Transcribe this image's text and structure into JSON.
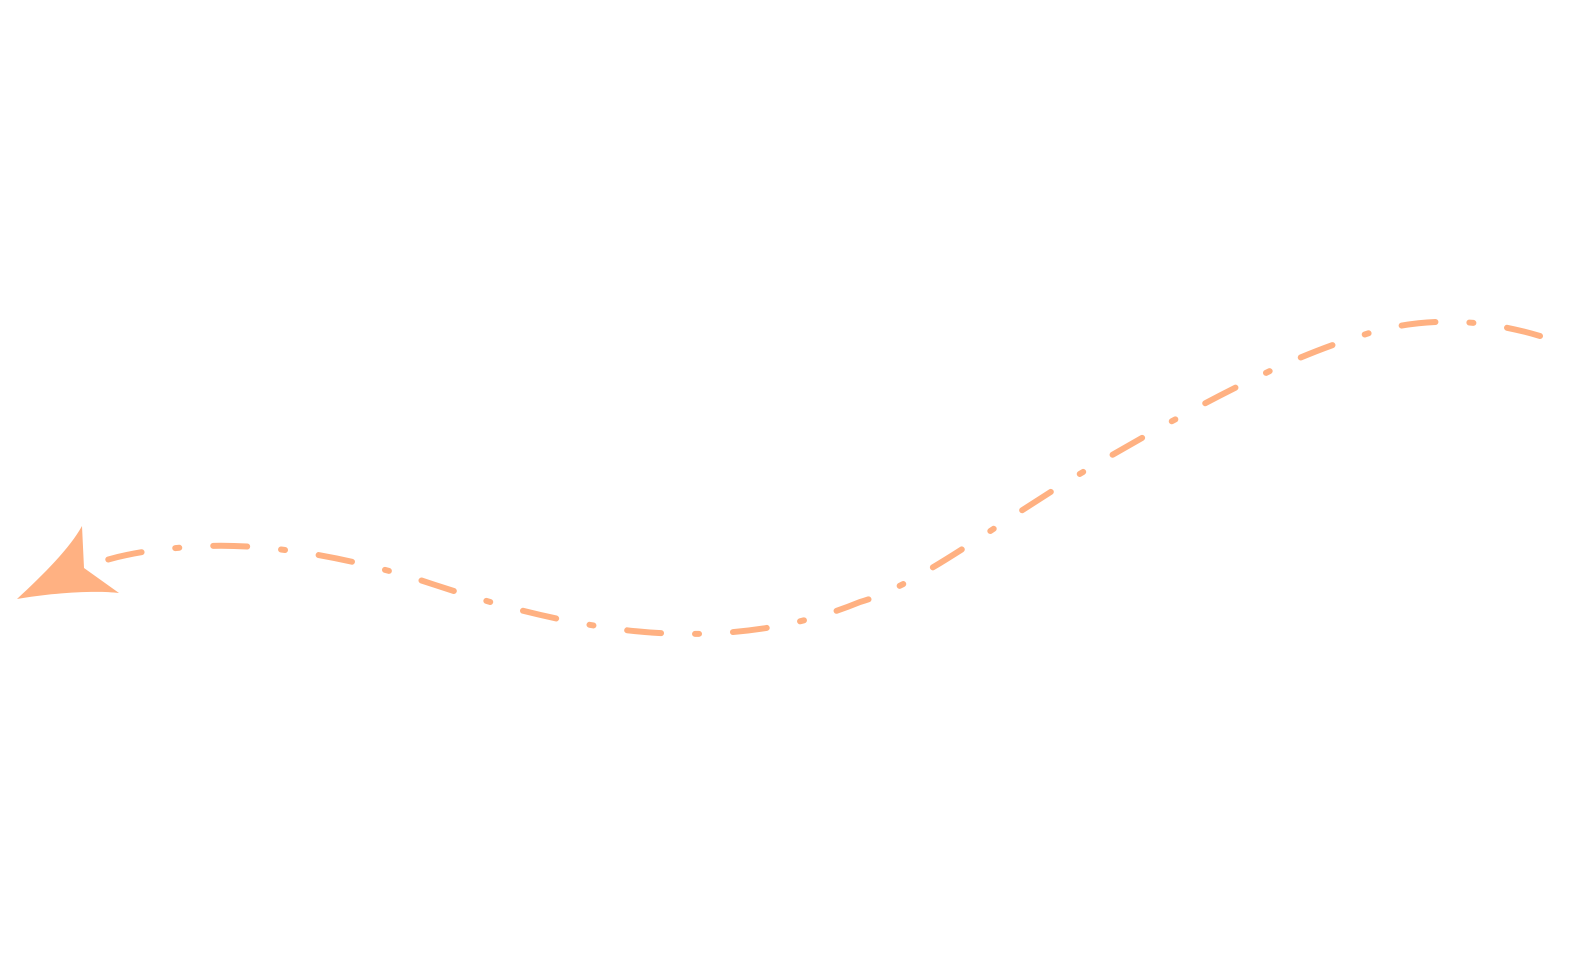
{
  "graphic": {
    "kind": "dashed-curved-arrow",
    "direction": "right-to-left",
    "line_style": "dash-dot",
    "color": "#FFB182",
    "background": "#ffffff",
    "icon": "arrowhead-left-icon"
  }
}
